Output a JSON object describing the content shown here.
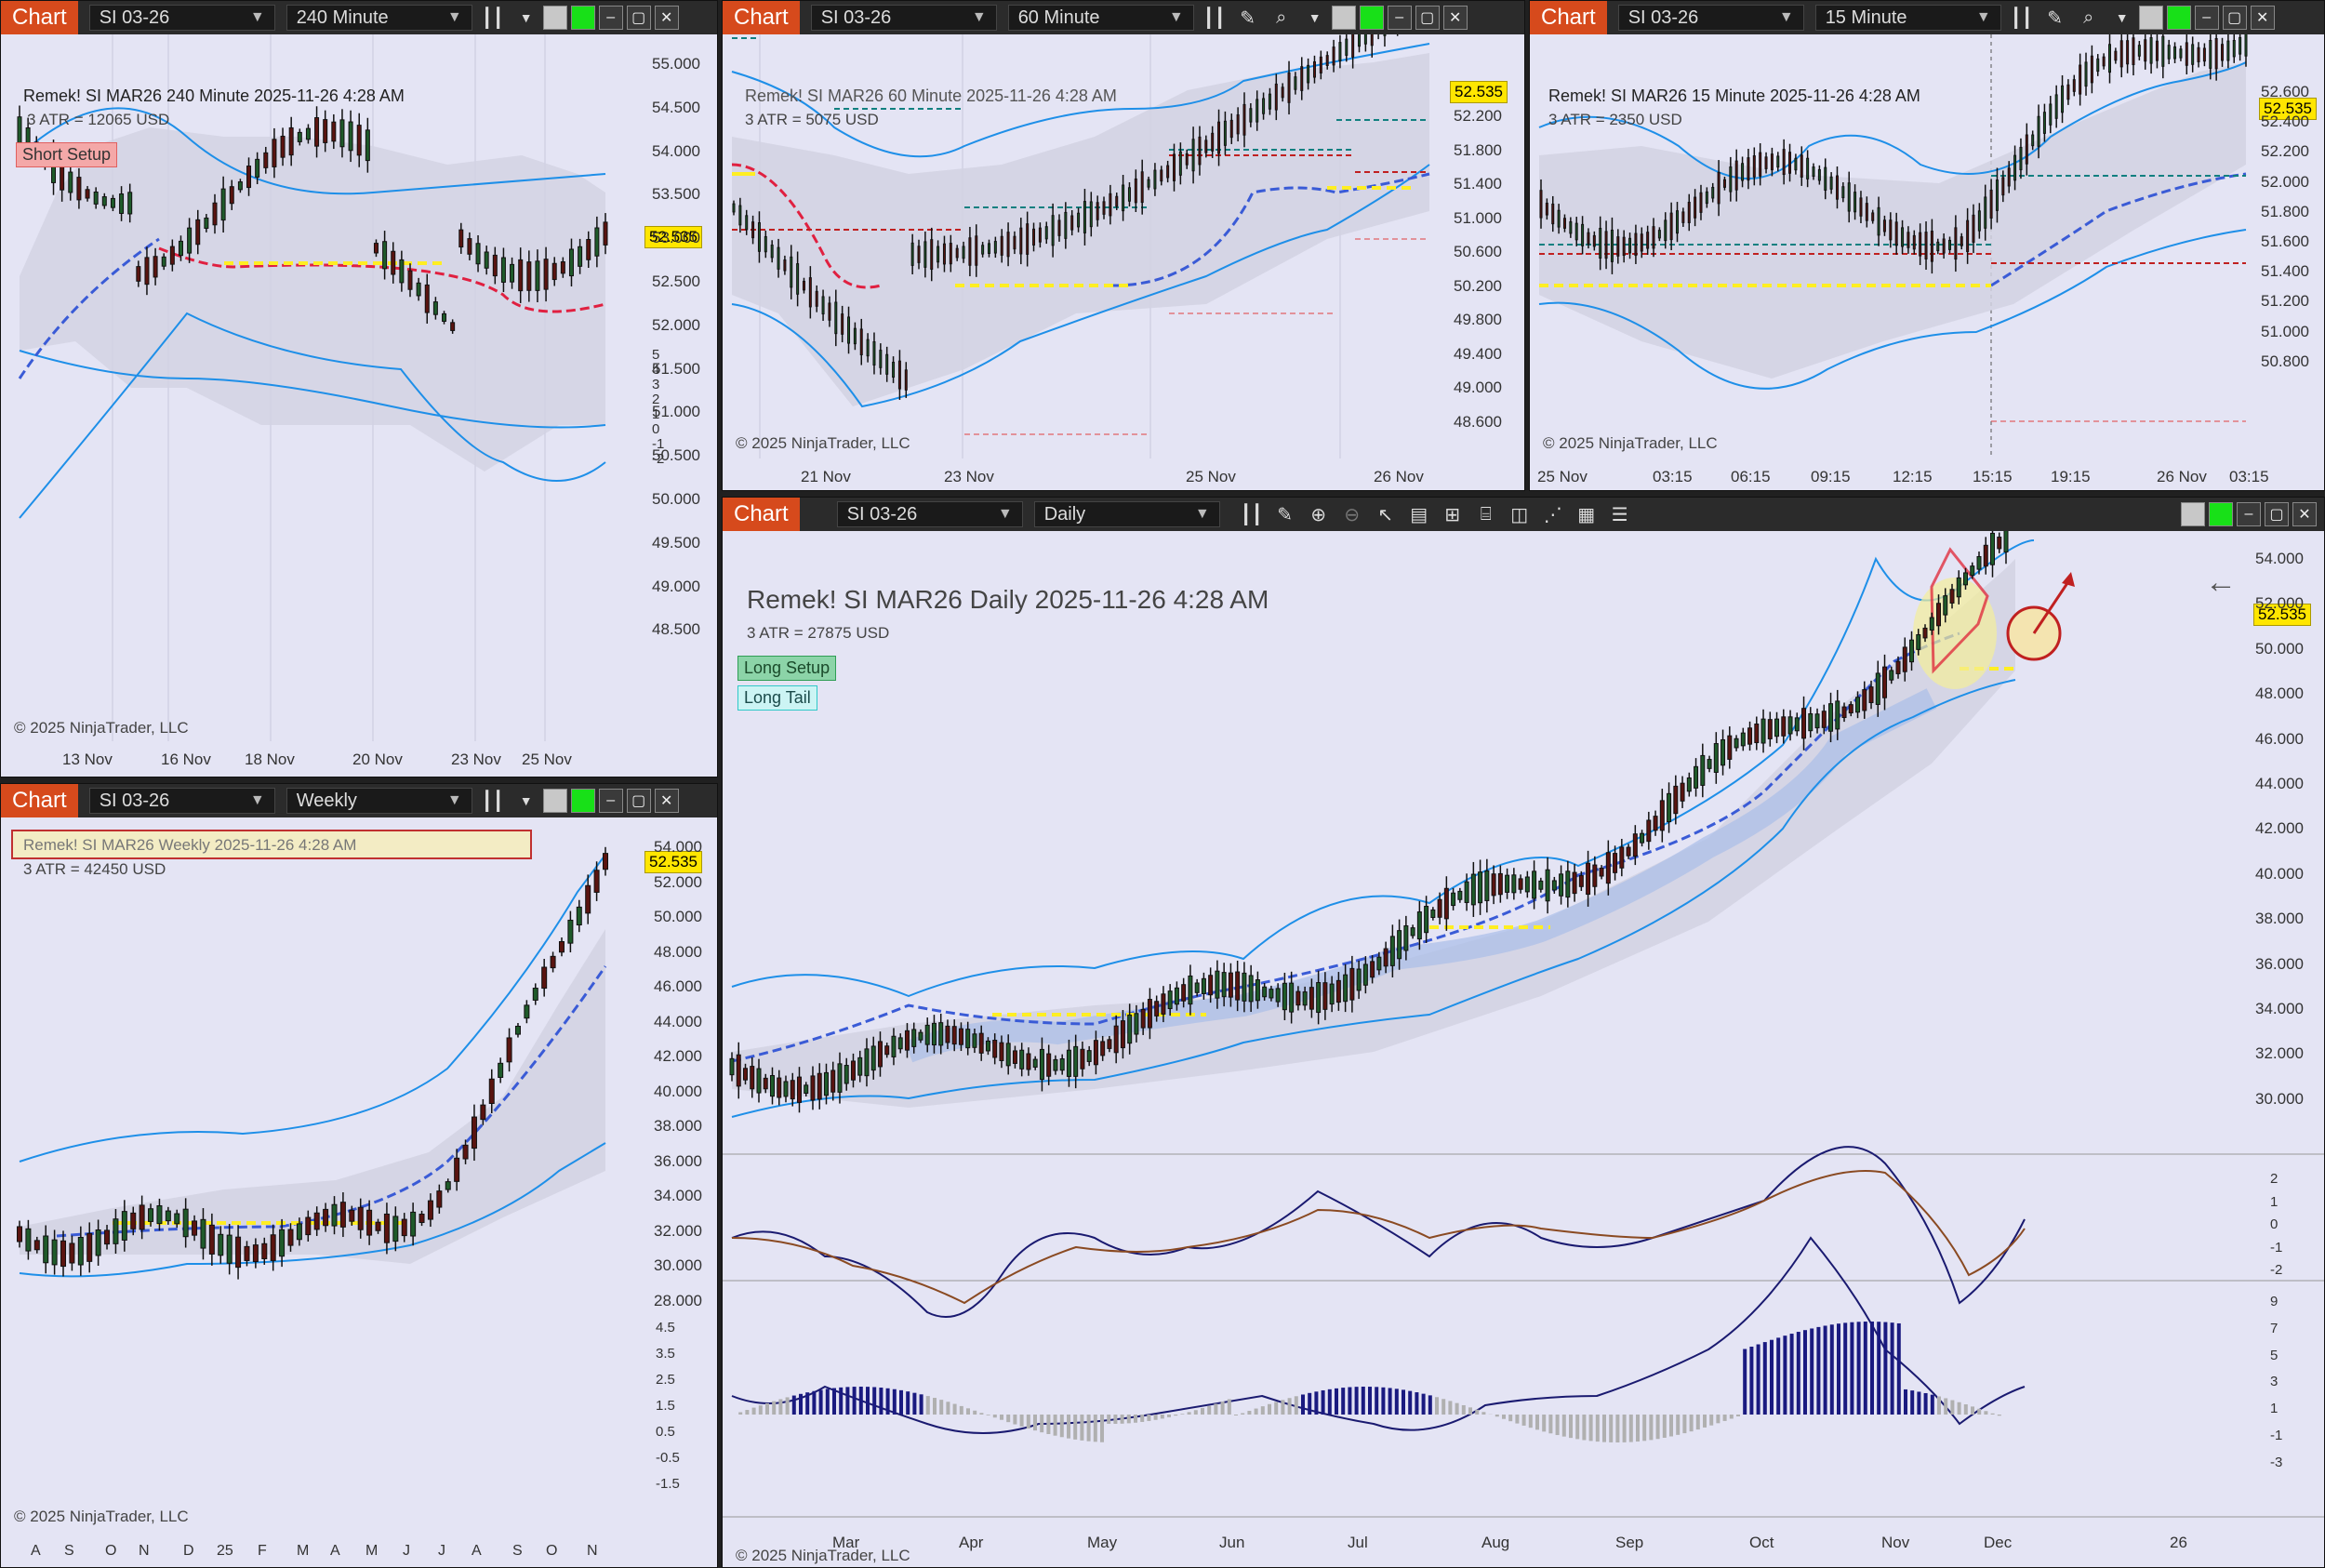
{
  "common": {
    "tab_label": "Chart",
    "instrument": "SI 03-26",
    "copyright": "© 2025 NinjaTrader, LLC",
    "last_price": "52.535",
    "colors": {
      "tab": "#d64a1c",
      "bg": "#e4e4f4",
      "band": "#1e6fe0",
      "ma": "#3a5bd6",
      "stop": "#e02040",
      "level": "#ffee22"
    }
  },
  "chart240": {
    "interval": "240 Minute",
    "title": "Remek!  SI MAR26  240 Minute  2025-11-26 4:28 AM",
    "atr": "3 ATR = 12065 USD",
    "setup": "Short Setup",
    "yticks": [
      "55.000",
      "54.500",
      "54.000",
      "53.500",
      "53.000",
      "52.500",
      "52.000",
      "51.500",
      "51.000",
      "50.500",
      "50.000",
      "49.500",
      "49.000",
      "48.500"
    ],
    "ind_ticks": [
      "5",
      "4",
      "3",
      "2",
      "1",
      "0",
      "-1",
      "-2"
    ],
    "xticks": [
      "13 Nov",
      "16 Nov",
      "18 Nov",
      "20 Nov",
      "23 Nov",
      "25 Nov"
    ]
  },
  "chart60": {
    "interval": "60 Minute",
    "title": "Remek!  SI MAR26  60 Minute  2025-11-26 4:28 AM",
    "atr": "3 ATR = 5075 USD",
    "yticks": [
      "52.200",
      "51.800",
      "51.400",
      "51.000",
      "50.600",
      "50.200",
      "49.800",
      "49.400",
      "49.000",
      "48.600"
    ],
    "xticks": [
      "21 Nov",
      "23 Nov",
      "25 Nov",
      "26 Nov"
    ]
  },
  "chart15": {
    "interval": "15 Minute",
    "title": "Remek!  SI MAR26  15 Minute  2025-11-26 4:28 AM",
    "atr": "3 ATR = 2350 USD",
    "yticks": [
      "52.600",
      "52.400",
      "52.200",
      "52.000",
      "51.800",
      "51.600",
      "51.400",
      "51.200",
      "51.000",
      "50.800"
    ],
    "xticks": [
      "25 Nov",
      "03:15",
      "06:15",
      "09:15",
      "12:15",
      "15:15",
      "19:15",
      "26 Nov",
      "03:15"
    ]
  },
  "chartWeekly": {
    "interval": "Weekly",
    "title": "Remek!  SI MAR26  Weekly  2025-11-26 4:28 AM",
    "atr": "3 ATR = 42450 USD",
    "yticks": [
      "54.000",
      "52.000",
      "50.000",
      "48.000",
      "46.000",
      "44.000",
      "42.000",
      "40.000",
      "38.000",
      "36.000",
      "34.000",
      "32.000",
      "30.000",
      "28.000"
    ],
    "ind_ticks": [
      "4.5",
      "3.5",
      "2.5",
      "1.5",
      "0.5",
      "-0.5",
      "-1.5"
    ],
    "xticks": [
      "A",
      "S",
      "O",
      "N",
      "D",
      "25",
      "F",
      "M",
      "A",
      "M",
      "J",
      "J",
      "A",
      "S",
      "O",
      "N"
    ]
  },
  "chartDaily": {
    "interval": "Daily",
    "title": "Remek!  SI MAR26  Daily  2025-11-26 4:28 AM",
    "atr": "3 ATR = 27875 USD",
    "setup1": "Long Setup",
    "setup2": "Long Tail",
    "yticks": [
      "54.000",
      "52.000",
      "50.000",
      "48.000",
      "46.000",
      "44.000",
      "42.000",
      "40.000",
      "38.000",
      "36.000",
      "34.000",
      "32.000",
      "30.000"
    ],
    "osc_ticks": [
      "2",
      "1",
      "0",
      "-1",
      "-2"
    ],
    "hist_ticks": [
      "9",
      "7",
      "5",
      "3",
      "1",
      "-1",
      "-3"
    ],
    "xticks": [
      "Mar",
      "Apr",
      "May",
      "Jun",
      "Jul",
      "Aug",
      "Sep",
      "Oct",
      "Nov",
      "Dec",
      "26"
    ]
  }
}
